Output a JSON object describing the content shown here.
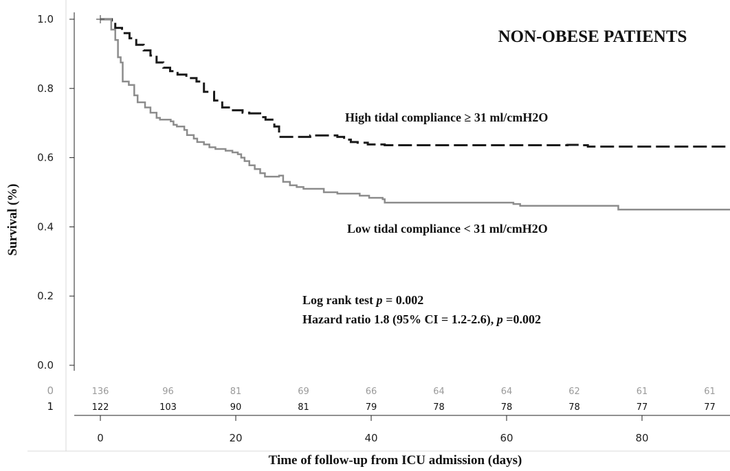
{
  "chart_data": {
    "type": "line",
    "title": "NON-OBESE PATIENTS",
    "xlabel": "Time of follow-up from ICU admission (days)",
    "ylabel": "Survival (%)",
    "xlim": [
      -10,
      94
    ],
    "ylim": [
      -0.07,
      1.0
    ],
    "xticks": [
      "0",
      "20",
      "40",
      "60",
      "80"
    ],
    "yticks": [
      "0.0",
      "0.2",
      "0.4",
      "0.6",
      "0.8",
      "1.0"
    ],
    "series": [
      {
        "name": "High tidal compliance ≥ 31 ml/cmH2O",
        "style": "dashed",
        "color": "#1a1a1a",
        "points": [
          [
            0,
            1.0
          ],
          [
            1.2,
            1.0
          ],
          [
            1.7,
            0.99
          ],
          [
            2.2,
            0.975
          ],
          [
            3.2,
            0.96
          ],
          [
            4.3,
            0.945
          ],
          [
            5.3,
            0.926
          ],
          [
            6.4,
            0.91
          ],
          [
            7.4,
            0.895
          ],
          [
            8.3,
            0.875
          ],
          [
            9.3,
            0.86
          ],
          [
            10.3,
            0.85
          ],
          [
            11.4,
            0.84
          ],
          [
            12.7,
            0.83
          ],
          [
            14.2,
            0.82
          ],
          [
            15.3,
            0.79
          ],
          [
            16.8,
            0.765
          ],
          [
            18,
            0.745
          ],
          [
            19.2,
            0.737
          ],
          [
            21,
            0.73
          ],
          [
            22,
            0.728
          ],
          [
            23.6,
            0.717
          ],
          [
            24.4,
            0.71
          ],
          [
            25.7,
            0.69
          ],
          [
            26.4,
            0.66
          ],
          [
            31,
            0.664
          ],
          [
            34,
            0.664
          ],
          [
            35,
            0.66
          ],
          [
            36,
            0.652
          ],
          [
            37,
            0.645
          ],
          [
            38,
            0.643
          ],
          [
            39.5,
            0.638
          ],
          [
            41,
            0.638
          ],
          [
            42,
            0.636
          ],
          [
            56,
            0.636
          ],
          [
            69,
            0.637
          ],
          [
            71,
            0.636
          ],
          [
            72,
            0.632
          ],
          [
            94,
            0.632
          ]
        ]
      },
      {
        "name": "Low tidal compliance < 31 ml/cmH2O",
        "style": "solid",
        "color": "#8c8c8c",
        "points": [
          [
            0,
            1.0
          ],
          [
            1.3,
            1.0
          ],
          [
            1.6,
            0.97
          ],
          [
            2.2,
            0.94
          ],
          [
            2.6,
            0.89
          ],
          [
            3.0,
            0.875
          ],
          [
            3.3,
            0.82
          ],
          [
            4.2,
            0.81
          ],
          [
            5.0,
            0.78
          ],
          [
            5.5,
            0.76
          ],
          [
            6.6,
            0.745
          ],
          [
            7.4,
            0.73
          ],
          [
            8.3,
            0.715
          ],
          [
            8.8,
            0.71
          ],
          [
            10.4,
            0.705
          ],
          [
            10.8,
            0.695
          ],
          [
            11.3,
            0.69
          ],
          [
            12.4,
            0.68
          ],
          [
            12.8,
            0.665
          ],
          [
            13.8,
            0.655
          ],
          [
            14.3,
            0.645
          ],
          [
            15.3,
            0.638
          ],
          [
            16.1,
            0.63
          ],
          [
            17,
            0.625
          ],
          [
            18.5,
            0.62
          ],
          [
            19.5,
            0.615
          ],
          [
            20.3,
            0.61
          ],
          [
            20.8,
            0.6
          ],
          [
            21.3,
            0.59
          ],
          [
            22,
            0.578
          ],
          [
            22.8,
            0.567
          ],
          [
            23.6,
            0.555
          ],
          [
            24.3,
            0.545
          ],
          [
            25.6,
            0.545
          ],
          [
            26.4,
            0.548
          ],
          [
            27,
            0.53
          ],
          [
            28,
            0.52
          ],
          [
            29,
            0.515
          ],
          [
            30,
            0.51
          ],
          [
            32.5,
            0.51
          ],
          [
            33,
            0.5
          ],
          [
            35,
            0.496
          ],
          [
            37.5,
            0.496
          ],
          [
            38.3,
            0.49
          ],
          [
            39.7,
            0.484
          ],
          [
            41.7,
            0.48
          ],
          [
            42,
            0.47
          ],
          [
            53,
            0.47
          ],
          [
            60,
            0.47
          ],
          [
            61,
            0.466
          ],
          [
            62,
            0.461
          ],
          [
            76,
            0.461
          ],
          [
            76.5,
            0.45
          ],
          [
            94,
            0.45
          ]
        ]
      }
    ],
    "annotations": {
      "panel_title": "NON-OBESE PATIENTS",
      "high_label": "High tidal compliance ≥ 31 ml/cmH2O",
      "low_label": "Low tidal compliance < 31 ml/cmH2O",
      "logrank_prefix": "Log rank test ",
      "logrank_p": "p",
      "logrank_value": " = 0.002",
      "hazard_text": "Hazard ratio 1.8 (95% CI = 1.2-2.6), ",
      "hazard_p": "p",
      "hazard_value": " =0.002"
    },
    "risk_table": {
      "times": [
        0,
        10,
        20,
        30,
        40,
        50,
        60,
        70,
        80,
        90
      ],
      "rows": [
        {
          "label": "0",
          "color": "#9a9a9a",
          "values": [
            "136",
            "96",
            "81",
            "69",
            "66",
            "64",
            "64",
            "62",
            "61",
            "61"
          ]
        },
        {
          "label": "1",
          "color": "#111111",
          "values": [
            "122",
            "103",
            "90",
            "81",
            "79",
            "78",
            "78",
            "78",
            "77",
            "77"
          ]
        }
      ]
    },
    "grid": false,
    "legend": "none"
  }
}
